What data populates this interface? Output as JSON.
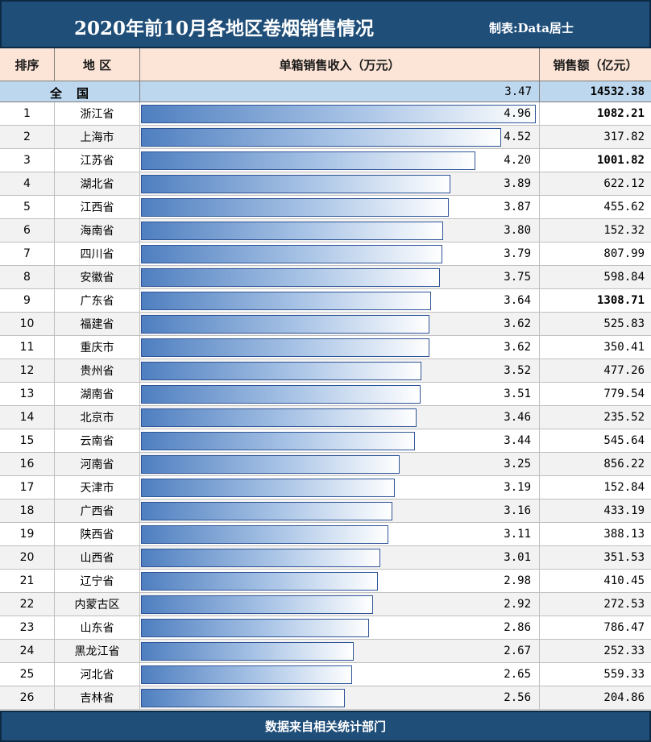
{
  "header": {
    "title": "2020年前10月各地区卷烟销售情况",
    "credit": "制表:Data居士"
  },
  "columns": {
    "rank": "排序",
    "region": "地 区",
    "unit_income": "单箱销售收入（万元）",
    "sales": "销售额（亿元）"
  },
  "national": {
    "name": "全国",
    "unit_income": "3.47",
    "sales": "14532.38"
  },
  "footer": {
    "source": "数据来自相关统计部门"
  },
  "colors": {
    "header_bg": "#1f4e79",
    "colhead_bg": "#fce4d6",
    "national_bg": "#bdd7ee",
    "bar_start": "#4f7fc0",
    "bar_end": "#ffffff",
    "bar_border": "#2f5597"
  },
  "chart_data": {
    "type": "bar",
    "orientation": "horizontal",
    "value_unit": "万元",
    "xlim": [
      0,
      5
    ],
    "categories": [
      "浙江省",
      "上海市",
      "江苏省",
      "湖北省",
      "江西省",
      "海南省",
      "四川省",
      "安徽省",
      "广东省",
      "福建省",
      "重庆市",
      "贵州省",
      "湖南省",
      "北京市",
      "云南省",
      "河南省",
      "天津市",
      "广西省",
      "陕西省",
      "山西省",
      "辽宁省",
      "内蒙古区",
      "山东省",
      "黑龙江省",
      "河北省",
      "吉林省"
    ],
    "ranks": [
      "1",
      "2",
      "3",
      "4",
      "5",
      "6",
      "7",
      "8",
      "9",
      "10",
      "11",
      "12",
      "13",
      "14",
      "15",
      "16",
      "17",
      "18",
      "19",
      "20",
      "21",
      "22",
      "23",
      "24",
      "25",
      "26"
    ],
    "values": [
      4.96,
      4.52,
      4.2,
      3.89,
      3.87,
      3.8,
      3.79,
      3.75,
      3.64,
      3.62,
      3.62,
      3.52,
      3.51,
      3.46,
      3.44,
      3.25,
      3.19,
      3.16,
      3.11,
      3.01,
      2.98,
      2.92,
      2.86,
      2.67,
      2.65,
      2.56
    ],
    "value_labels": [
      "4.96",
      "4.52",
      "4.20",
      "3.89",
      "3.87",
      "3.80",
      "3.79",
      "3.75",
      "3.64",
      "3.62",
      "3.62",
      "3.52",
      "3.51",
      "3.46",
      "3.44",
      "3.25",
      "3.19",
      "3.16",
      "3.11",
      "3.01",
      "2.98",
      "2.92",
      "2.86",
      "2.67",
      "2.65",
      "2.56"
    ],
    "sales": [
      "1082.21",
      "317.82",
      "1001.82",
      "622.12",
      "455.62",
      "152.32",
      "807.99",
      "598.84",
      "1308.71",
      "525.83",
      "350.41",
      "477.26",
      "779.54",
      "235.52",
      "545.64",
      "856.22",
      "152.84",
      "433.19",
      "388.13",
      "351.53",
      "410.45",
      "272.53",
      "786.47",
      "252.33",
      "559.33",
      "204.86"
    ],
    "sales_emphasis": [
      true,
      false,
      true,
      false,
      false,
      false,
      false,
      false,
      true,
      false,
      false,
      false,
      false,
      false,
      false,
      false,
      false,
      false,
      false,
      false,
      false,
      false,
      false,
      false,
      false,
      false
    ]
  }
}
